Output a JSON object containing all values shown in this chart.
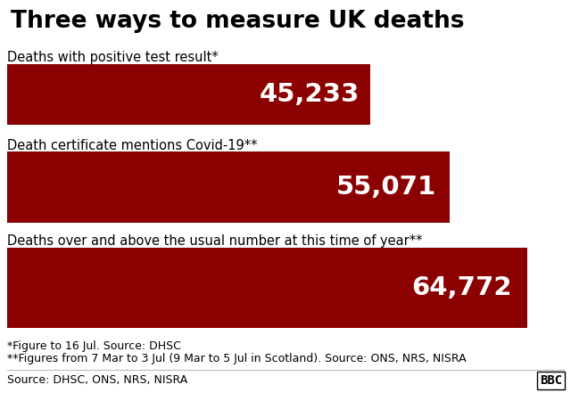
{
  "title": "Three ways to measure UK deaths",
  "title_fontsize": 19,
  "title_fontweight": "bold",
  "background_color": "#ffffff",
  "bar_color": "#8B0000",
  "categories": [
    "Deaths with positive test result*",
    "Death certificate mentions Covid-19**",
    "Deaths over and above the usual number at this time of year**"
  ],
  "values": [
    45233,
    55071,
    64772
  ],
  "value_labels": [
    "45,233",
    "55,071",
    "64,772"
  ],
  "max_value": 68000,
  "footnote1": "*Figure to 16 Jul. Source: DHSC",
  "footnote2": "**Figures from 7 Mar to 3 Jul (9 Mar to 5 Jul in Scotland). Source: ONS, NRS, NISRA",
  "source": "Source: DHSC, ONS, NRS, NISRA",
  "bbc_label": "BBC",
  "value_fontsize": 21,
  "label_fontsize": 10.5,
  "footnote_fontsize": 9,
  "source_fontsize": 9
}
